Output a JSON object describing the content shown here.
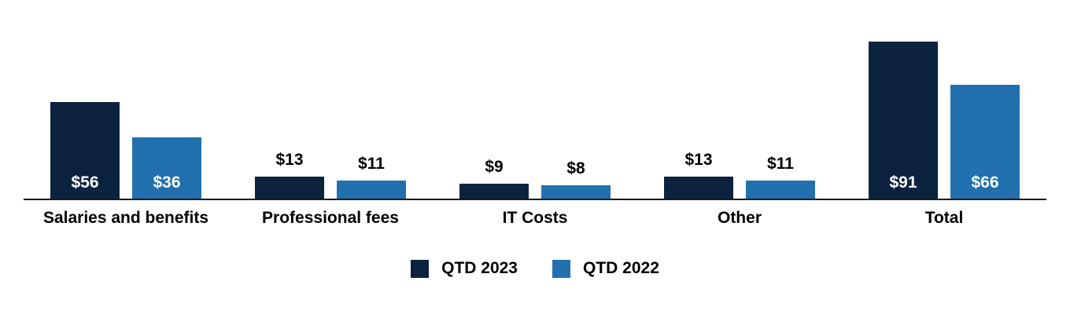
{
  "chart_data": {
    "type": "bar",
    "categories": [
      "Salaries and benefits",
      "Professional fees",
      "IT Costs",
      "Other",
      "Total"
    ],
    "series": [
      {
        "name": "QTD 2023",
        "color": "#0c2340",
        "values": [
          56,
          13,
          9,
          13,
          91
        ],
        "labels": [
          "$56",
          "$13",
          "$9",
          "$13",
          "$91"
        ]
      },
      {
        "name": "QTD 2022",
        "color": "#2271ae",
        "values": [
          36,
          11,
          8,
          11,
          66
        ],
        "labels": [
          "$36",
          "$11",
          "$8",
          "$11",
          "$66"
        ]
      }
    ],
    "value_prefix": "$",
    "ylim": [
      0,
      115
    ],
    "grid": false,
    "legend_position": "bottom",
    "axis_line_color": "#1a1a1a",
    "inside_label_color": "#ffffff",
    "outside_label_color": "#000000"
  }
}
